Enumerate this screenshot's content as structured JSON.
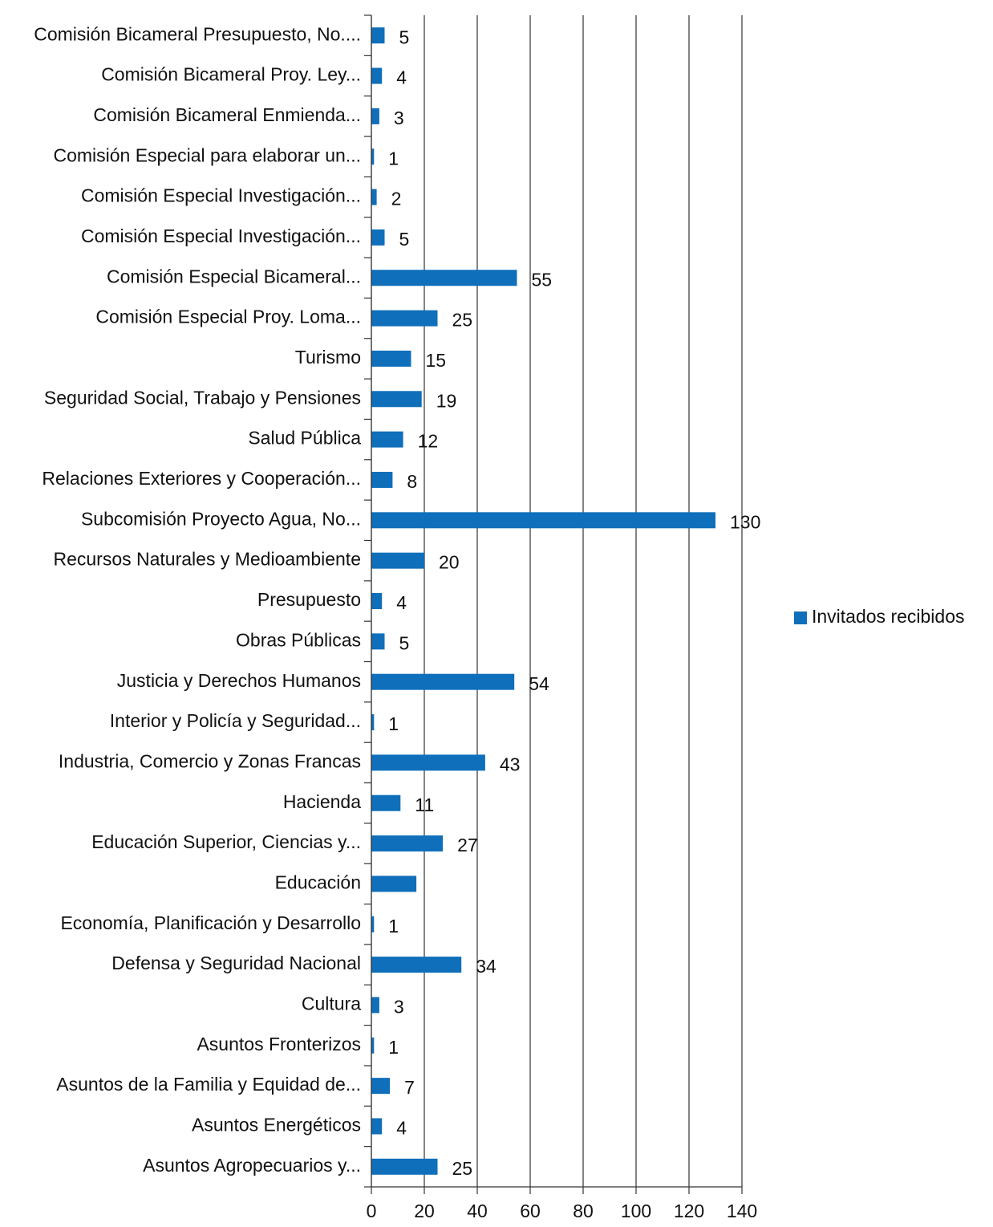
{
  "chart_data": {
    "type": "bar",
    "orientation": "horizontal",
    "categories": [
      "Comisión Bicameral Presupuesto, No....",
      "Comisión Bicameral Proy. Ley...",
      "Comisión Bicameral Enmienda...",
      "Comisión Especial para elaborar un...",
      "Comisión Especial Investigación...",
      "Comisión Especial Investigación...",
      "Comisión Especial Bicameral...",
      "Comisión Especial Proy. Loma...",
      "Turismo",
      "Seguridad Social, Trabajo y Pensiones",
      "Salud Pública",
      "Relaciones Exteriores y Cooperación...",
      "Subcomisión Proyecto Agua, No...",
      "Recursos Naturales y Medioambiente",
      "Presupuesto",
      "Obras Públicas",
      "Justicia y Derechos Humanos",
      "Interior y Policía y Seguridad...",
      "Industria, Comercio y Zonas Francas",
      "Hacienda",
      "Educación Superior, Ciencias y...",
      "Educación",
      "Economía, Planificación y Desarrollo",
      "Defensa y Seguridad Nacional",
      "Cultura",
      "Asuntos Fronterizos",
      "Asuntos de la Familia y Equidad de...",
      "Asuntos Energéticos",
      "Asuntos Agropecuarios y..."
    ],
    "series": [
      {
        "name": "Invitados recibidos",
        "color": "#0f6fba",
        "values": [
          5,
          4,
          3,
          1,
          2,
          5,
          55,
          25,
          15,
          19,
          12,
          8,
          130,
          20,
          4,
          5,
          54,
          1,
          43,
          11,
          27,
          17,
          1,
          34,
          3,
          1,
          7,
          4,
          25
        ],
        "value_labels": [
          "5",
          "4",
          "3",
          "1",
          "2",
          "5",
          "55",
          "25",
          "15",
          "19",
          "12",
          "8",
          "130",
          "20",
          "4",
          "5",
          "54",
          "1",
          "43",
          "11",
          "27",
          null,
          "1",
          "34",
          "3",
          "1",
          "7",
          "4",
          "25"
        ]
      }
    ],
    "xlim": [
      0,
      140
    ],
    "xticks": [
      0,
      20,
      40,
      60,
      80,
      100,
      120,
      140
    ],
    "grid": true,
    "legend": "right"
  }
}
